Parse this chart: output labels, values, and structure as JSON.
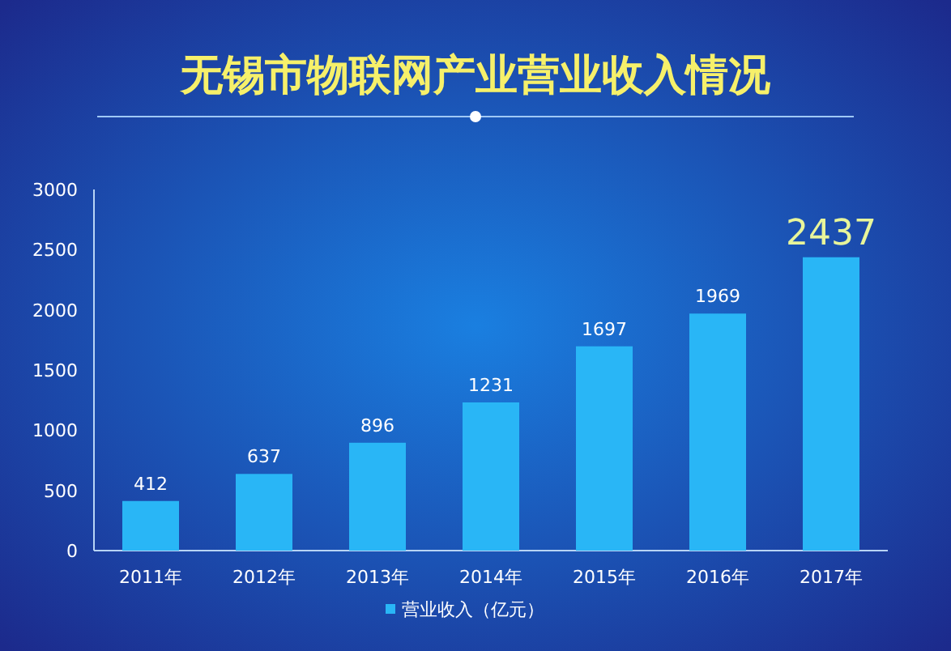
{
  "chart_data": {
    "type": "bar",
    "title": "无锡市物联网产业营业收入情况",
    "categories": [
      "2011年",
      "2012年",
      "2013年",
      "2014年",
      "2015年",
      "2016年",
      "2017年"
    ],
    "series": [
      {
        "name": "营业收入（亿元）",
        "color": "#29b6f6",
        "values": [
          412,
          637,
          896,
          1231,
          1697,
          1969,
          2437
        ]
      }
    ],
    "ylim": [
      0,
      3000
    ],
    "yticks": [
      0,
      500,
      1000,
      1500,
      2000,
      2500,
      3000
    ],
    "data_labels": true,
    "legend": "bottom"
  }
}
